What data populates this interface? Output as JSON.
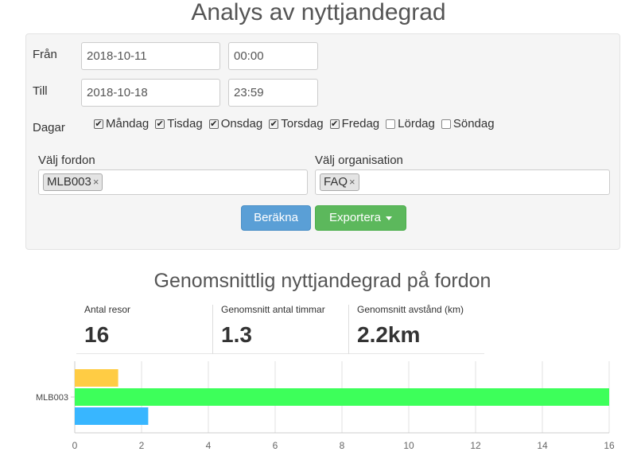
{
  "page": {
    "title": "Analys av nyttjandegrad"
  },
  "filters": {
    "from_label": "Från",
    "from_date": "2018-10-11",
    "from_time": "00:00",
    "to_label": "Till",
    "to_date": "2018-10-18",
    "to_time": "23:59",
    "days_label": "Dagar",
    "days": [
      {
        "label": "Måndag",
        "checked": true
      },
      {
        "label": "Tisdag",
        "checked": true
      },
      {
        "label": "Onsdag",
        "checked": true
      },
      {
        "label": "Torsdag",
        "checked": true
      },
      {
        "label": "Fredag",
        "checked": true
      },
      {
        "label": "Lördag",
        "checked": false
      },
      {
        "label": "Söndag",
        "checked": false
      }
    ],
    "vehicle_label": "Välj fordon",
    "vehicle_tag": "MLB003",
    "org_label": "Välj organisation",
    "org_tag": "FAQ",
    "tag_remove": "×",
    "calculate_button": "Beräkna",
    "export_button": "Exportera"
  },
  "summary": {
    "title": "Genomsnittlig nyttjandegrad på fordon",
    "stats": [
      {
        "label": "Antal resor",
        "value": "16"
      },
      {
        "label": "Genomsnitt antal timmar",
        "value": "1.3"
      },
      {
        "label": "Genomsnitt avstånd (km)",
        "value": "2.2km"
      }
    ]
  },
  "chart_data": {
    "type": "bar",
    "orientation": "horizontal",
    "categories": [
      "MLB003"
    ],
    "series": [
      {
        "values": [
          1.3
        ],
        "color": "#ffcc44"
      },
      {
        "values": [
          16
        ],
        "color": "#3dff5a"
      },
      {
        "values": [
          2.2
        ],
        "color": "#38b6ff"
      }
    ],
    "xlim": [
      0,
      16
    ],
    "xticks": [
      0,
      2,
      4,
      6,
      8,
      10,
      12,
      14,
      16
    ],
    "grid": true
  }
}
